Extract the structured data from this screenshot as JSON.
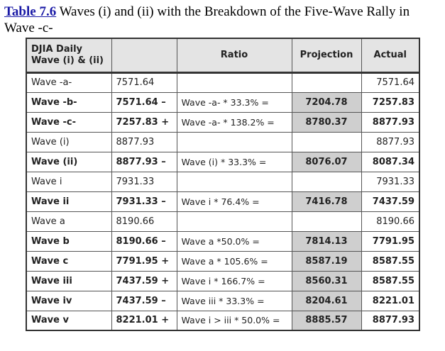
{
  "caption": {
    "table_label": "Table 7.6",
    "text": " Waves (i) and (ii) with the Breakdown of the Five-Wave Rally in Wave -c-"
  },
  "headers": {
    "col0_line1": "DJIA Daily",
    "col0_line2": "Wave (i) & (ii)",
    "col1": "",
    "col2": "Ratio",
    "col3": "Projection",
    "col4": "Actual"
  },
  "rows": [
    {
      "wave": "Wave -a-",
      "value": "7571.64",
      "ratio": "",
      "projection": "",
      "actual": "7571.64",
      "bold": false
    },
    {
      "wave": "Wave -b-",
      "value": "7571.64 –",
      "ratio": "Wave -a- * 33.3% =",
      "projection": "7204.78",
      "actual": "7257.83",
      "bold": true
    },
    {
      "wave": "Wave -c-",
      "value": "7257.83 +",
      "ratio": "Wave -a- * 138.2% =",
      "projection": "8780.37",
      "actual": "8877.93",
      "bold": true
    },
    {
      "wave": "Wave (i)",
      "value": "8877.93",
      "ratio": "",
      "projection": "",
      "actual": "8877.93",
      "bold": false
    },
    {
      "wave": "Wave (ii)",
      "value": "8877.93 –",
      "ratio": "Wave (i) * 33.3% =",
      "projection": "8076.07",
      "actual": "8087.34",
      "bold": true
    },
    {
      "wave": "Wave i",
      "value": "7931.33",
      "ratio": "",
      "projection": "",
      "actual": "7931.33",
      "bold": false
    },
    {
      "wave": "Wave ii",
      "value": "7931.33 –",
      "ratio": "Wave i * 76.4% =",
      "projection": "7416.78",
      "actual": "7437.59",
      "bold": true
    },
    {
      "wave": "Wave a",
      "value": "8190.66",
      "ratio": "",
      "projection": "",
      "actual": "8190.66",
      "bold": false
    },
    {
      "wave": "Wave b",
      "value": "8190.66 –",
      "ratio": "Wave a *50.0% =",
      "projection": "7814.13",
      "actual": "7791.95",
      "bold": true
    },
    {
      "wave": "Wave c",
      "value": "7791.95 +",
      "ratio": "Wave a * 105.6% =",
      "projection": "8587.19",
      "actual": "8587.55",
      "bold": true
    },
    {
      "wave": "Wave iii",
      "value": "7437.59 +",
      "ratio": "Wave i * 166.7% =",
      "projection": "8560.31",
      "actual": "8587.55",
      "bold": true
    },
    {
      "wave": "Wave iv",
      "value": "7437.59 –",
      "ratio": "Wave iii * 33.3% =",
      "projection": "8204.61",
      "actual": "8221.01",
      "bold": true
    },
    {
      "wave": "Wave v",
      "value": "8221.01 +",
      "ratio": "Wave i > iii * 50.0% =",
      "projection": "8885.57",
      "actual": "8877.93",
      "bold": true
    }
  ]
}
